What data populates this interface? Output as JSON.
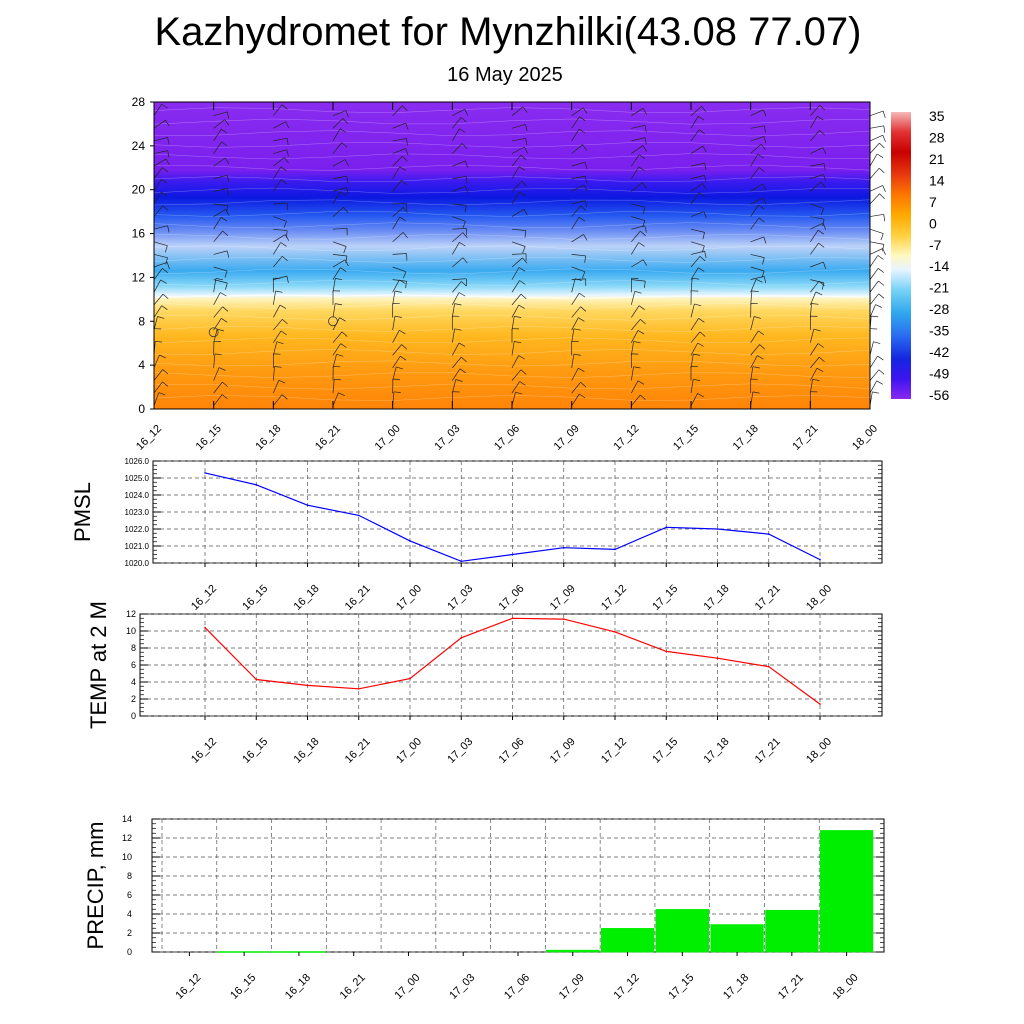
{
  "header": {
    "title": "Kazhydromet for Mynzhilki(43.08 77.07)",
    "date": "16 May 2025"
  },
  "chart_data": [
    {
      "type": "heatmap",
      "name": "Temperature and wind cross-section",
      "x_ticks": [
        "16_12",
        "16_15",
        "16_18",
        "16_21",
        "17_00",
        "17_03",
        "17_06",
        "17_09",
        "17_12",
        "17_15",
        "17_18",
        "17_21",
        "18_00"
      ],
      "y_ticks": [
        0,
        4,
        8,
        12,
        16,
        20,
        24,
        28
      ],
      "ylim": [
        0,
        28
      ],
      "colorbar_labels": [
        35,
        28,
        21,
        14,
        7,
        0,
        -7,
        -14,
        -21,
        -28,
        -35,
        -42,
        -49,
        -56
      ],
      "zero_isotherm_level": [
        10.2,
        10.3,
        10.4,
        10.3,
        10.4,
        10.3,
        10.2,
        10.1,
        10.2,
        10.3,
        10.3,
        10.3,
        10.2
      ],
      "cold_core_level": 19.5
    },
    {
      "type": "line",
      "ylabel": "PMSL",
      "x": [
        "16_12",
        "16_15",
        "16_18",
        "16_21",
        "17_00",
        "17_03",
        "17_06",
        "17_09",
        "17_12",
        "17_15",
        "17_18",
        "17_21",
        "18_00"
      ],
      "values": [
        1025.3,
        1024.6,
        1023.4,
        1022.8,
        1021.3,
        1020.1,
        1020.5,
        1020.9,
        1020.8,
        1022.1,
        1022.0,
        1021.7,
        1020.2
      ],
      "ylim": [
        1020.0,
        1026.0
      ],
      "y_ticks": [
        "1020.0",
        "1021.0",
        "1022.0",
        "1023.0",
        "1024.0",
        "1025.0",
        "1026.0"
      ],
      "color": "#0000ff"
    },
    {
      "type": "line",
      "ylabel": "TEMP at 2 M",
      "x": [
        "16_12",
        "16_15",
        "16_18",
        "16_21",
        "17_00",
        "17_03",
        "17_06",
        "17_09",
        "17_12",
        "17_15",
        "17_18",
        "17_21",
        "18_00"
      ],
      "values": [
        10.4,
        4.3,
        3.6,
        3.2,
        4.4,
        9.2,
        11.5,
        11.4,
        9.9,
        7.6,
        6.8,
        5.8,
        1.4
      ],
      "ylim": [
        0,
        12
      ],
      "y_ticks": [
        0,
        2,
        4,
        6,
        8,
        10,
        12
      ],
      "color": "#ff0000"
    },
    {
      "type": "bar",
      "ylabel": "PRECIP, mm",
      "categories": [
        "16_12",
        "16_15",
        "16_18",
        "16_21",
        "17_00",
        "17_03",
        "17_06",
        "17_09",
        "17_12",
        "17_15",
        "17_18",
        "17_21",
        "18_00"
      ],
      "values": [
        0,
        0.05,
        0.05,
        0,
        0,
        0,
        0,
        0.2,
        2.5,
        4.5,
        2.9,
        4.4,
        12.8
      ],
      "ylim": [
        0,
        14
      ],
      "y_ticks": [
        0,
        2,
        4,
        6,
        8,
        10,
        12,
        14
      ],
      "color": "#00ee00"
    }
  ]
}
